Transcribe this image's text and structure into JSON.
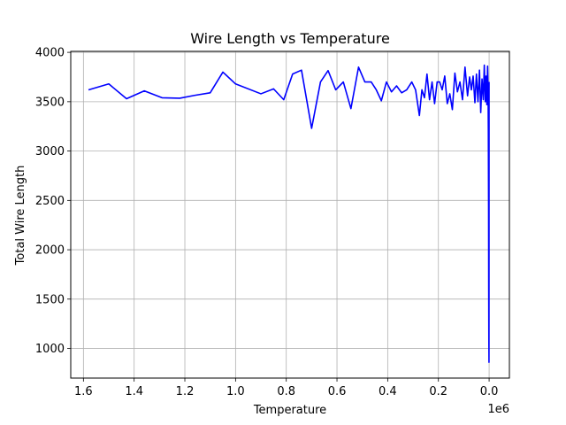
{
  "chart_data": {
    "type": "line",
    "title": "Wire Length vs Temperature",
    "xlabel": "Temperature",
    "ylabel": "Total Wire Length",
    "x_offset_text": "1e6",
    "x_reversed": true,
    "xlim": [
      1.65,
      -0.08
    ],
    "ylim": [
      700,
      4010
    ],
    "grid": true,
    "x_ticks": [
      1.6,
      1.4,
      1.2,
      1.0,
      0.8,
      0.6,
      0.4,
      0.2,
      0.0
    ],
    "x_tick_labels": [
      "1.6",
      "1.4",
      "1.2",
      "1.0",
      "0.8",
      "0.6",
      "0.4",
      "0.2",
      "0.0"
    ],
    "y_ticks": [
      1000,
      1500,
      2000,
      2500,
      3000,
      3500,
      4000
    ],
    "y_tick_labels": [
      "1000",
      "1500",
      "2000",
      "2500",
      "3000",
      "3500",
      "4000"
    ],
    "series": [
      {
        "color": "#0000ff",
        "x": [
          1.58,
          1.5,
          1.43,
          1.36,
          1.29,
          1.22,
          1.16,
          1.1,
          1.05,
          1.0,
          0.9,
          0.85,
          0.81,
          0.775,
          0.74,
          0.7,
          0.665,
          0.635,
          0.605,
          0.575,
          0.545,
          0.515,
          0.49,
          0.465,
          0.445,
          0.425,
          0.405,
          0.385,
          0.365,
          0.345,
          0.325,
          0.305,
          0.29,
          0.275,
          0.265,
          0.255,
          0.245,
          0.235,
          0.225,
          0.215,
          0.205,
          0.195,
          0.185,
          0.175,
          0.165,
          0.155,
          0.145,
          0.135,
          0.125,
          0.115,
          0.105,
          0.095,
          0.085,
          0.077,
          0.07,
          0.063,
          0.056,
          0.05,
          0.044,
          0.038,
          0.033,
          0.028,
          0.023,
          0.019,
          0.015,
          0.012,
          0.009,
          0.006,
          0.004,
          0.003,
          0.002,
          0.0015,
          0.001,
          0.0005,
          0.0002
        ],
        "y": [
          3620,
          3680,
          3530,
          3610,
          3540,
          3535,
          3565,
          3590,
          3800,
          3680,
          3580,
          3630,
          3520,
          3780,
          3820,
          3230,
          3700,
          3815,
          3620,
          3700,
          3430,
          3850,
          3700,
          3700,
          3620,
          3510,
          3700,
          3600,
          3660,
          3590,
          3620,
          3700,
          3620,
          3360,
          3620,
          3540,
          3780,
          3520,
          3700,
          3480,
          3700,
          3700,
          3620,
          3760,
          3480,
          3580,
          3420,
          3790,
          3600,
          3700,
          3520,
          3850,
          3560,
          3750,
          3620,
          3760,
          3490,
          3780,
          3500,
          3820,
          3390,
          3730,
          3520,
          3870,
          3500,
          3760,
          3470,
          3860,
          3600,
          3200,
          2400,
          1600,
          1100,
          860,
          3700
        ]
      }
    ]
  }
}
